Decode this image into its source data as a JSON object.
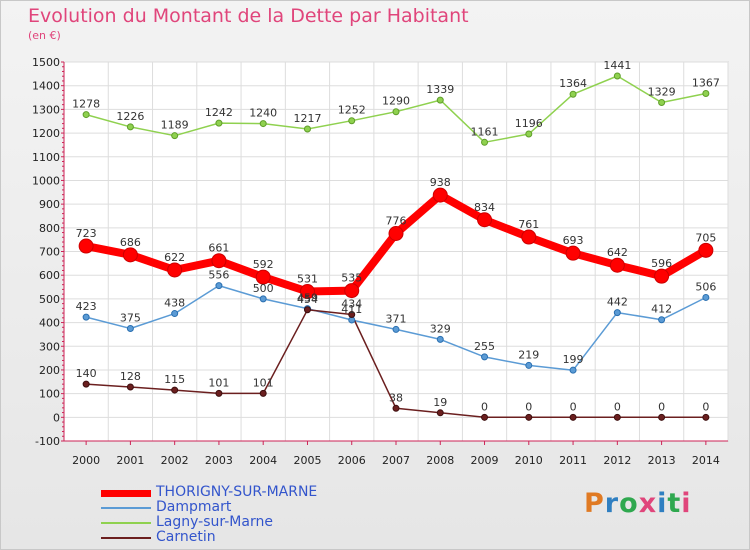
{
  "title": "Evolution du Montant de la Dette par Habitant",
  "unit": "(en €)",
  "logo": "Proxiti",
  "logo_colors": [
    "#e07a23",
    "#2f7fc1",
    "#2fa84f",
    "#e0457b",
    "#2f7fc1",
    "#2fa84f",
    "#e0457b"
  ],
  "chart_data": {
    "type": "line",
    "x": [
      "2000",
      "2001",
      "2002",
      "2003",
      "2004",
      "2005",
      "2006",
      "2007",
      "2008",
      "2009",
      "2010",
      "2011",
      "2012",
      "2013",
      "2014"
    ],
    "ylim": [
      -100,
      1500
    ],
    "yticks": [
      -100,
      0,
      100,
      200,
      300,
      400,
      500,
      600,
      700,
      800,
      900,
      1000,
      1100,
      1200,
      1300,
      1400,
      1500
    ],
    "grid": true,
    "legend_position": "bottom-left",
    "series": [
      {
        "name": "THORIGNY-SUR-MARNE",
        "color": "#ff0000",
        "values": [
          723,
          686,
          622,
          661,
          592,
          531,
          535,
          776,
          938,
          834,
          761,
          693,
          642,
          596,
          705
        ]
      },
      {
        "name": "Dampmart",
        "color": "#5b9bd5",
        "values": [
          423,
          375,
          438,
          556,
          500,
          459,
          411,
          371,
          329,
          255,
          219,
          199,
          442,
          412,
          506
        ]
      },
      {
        "name": "Lagny-sur-Marne",
        "color": "#8fd14f",
        "values": [
          1278,
          1226,
          1189,
          1242,
          1240,
          1217,
          1252,
          1290,
          1339,
          1161,
          1196,
          1364,
          1441,
          1329,
          1367
        ]
      },
      {
        "name": "Carnetin",
        "color": "#6b1f1f",
        "values": [
          140,
          128,
          115,
          101,
          101,
          454,
          434,
          38,
          19,
          0,
          0,
          0,
          0,
          0,
          0
        ]
      }
    ]
  }
}
